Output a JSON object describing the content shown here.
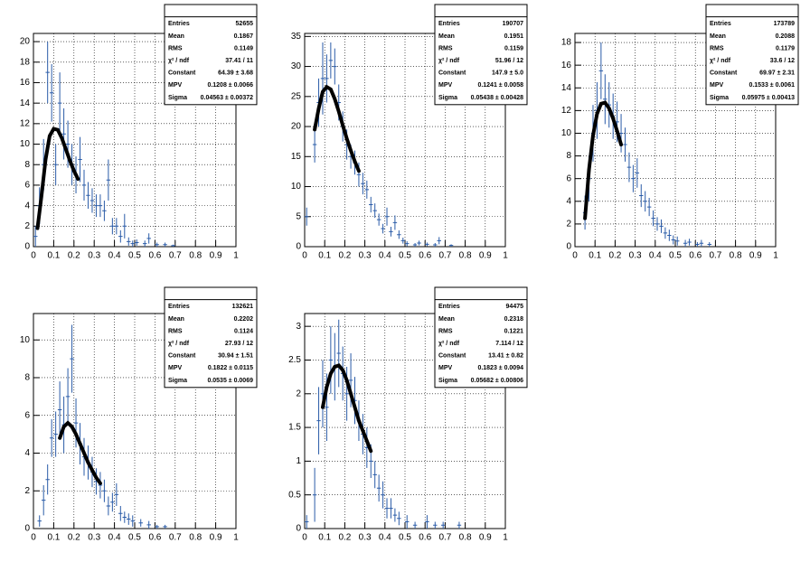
{
  "chart_data": [
    {
      "type": "errorbar",
      "grid": true,
      "xlim": [
        0,
        1
      ],
      "xticks": [
        0,
        0.1,
        0.2,
        0.3,
        0.4,
        0.5,
        0.6,
        0.7,
        0.8,
        0.9,
        1
      ],
      "ylim": [
        0,
        20.8
      ],
      "yticks": [
        0,
        2,
        4,
        6,
        8,
        10,
        12,
        14,
        16,
        18,
        20
      ],
      "series": [
        {
          "color": "#2b5ca8",
          "x": [
            0.01,
            0.03,
            0.05,
            0.07,
            0.09,
            0.11,
            0.13,
            0.15,
            0.17,
            0.19,
            0.21,
            0.23,
            0.25,
            0.27,
            0.29,
            0.31,
            0.33,
            0.35,
            0.37,
            0.39,
            0.41,
            0.43,
            0.45,
            0.47,
            0.49,
            0.51,
            0.55,
            0.57,
            0.61,
            0.65,
            0.69
          ],
          "values": [
            1,
            4,
            8,
            17,
            15,
            8,
            14,
            11,
            10,
            8,
            7,
            8.5,
            6,
            5,
            4.5,
            4,
            4,
            3.5,
            6.5,
            2,
            2,
            1,
            2,
            0.5,
            0.3,
            0.4,
            0.3,
            0.8,
            0.2,
            0.2,
            0.1
          ],
          "errors": [
            1,
            1.8,
            2.5,
            3,
            2.8,
            2,
            3,
            2.5,
            2.3,
            2,
            1.8,
            2.2,
            1.5,
            1.3,
            1.2,
            1.1,
            1.1,
            1,
            2,
            0.8,
            0.8,
            0.6,
            1.2,
            0.4,
            0.3,
            0.3,
            0.3,
            0.5,
            0.2,
            0.2,
            0.1
          ]
        }
      ],
      "fit": {
        "color": "#000000",
        "x": [
          0.02,
          0.04,
          0.06,
          0.08,
          0.1,
          0.12,
          0.14,
          0.16,
          0.18,
          0.2,
          0.22
        ],
        "values": [
          1.8,
          5,
          8.5,
          10.8,
          11.5,
          11.4,
          10.6,
          9.5,
          8.4,
          7.4,
          6.6
        ]
      },
      "stats": [
        {
          "label": "Entries",
          "value": "52655"
        },
        {
          "label": "Mean",
          "value": "0.1867"
        },
        {
          "label": "RMS",
          "value": "0.1149"
        },
        {
          "label": "χ² / ndf",
          "value": "37.41 / 11"
        },
        {
          "label": "Constant",
          "value": "64.39 ± 3.68"
        },
        {
          "label": "MPV",
          "value": "0.1208 ± 0.0066"
        },
        {
          "label": "Sigma",
          "value": "0.04563 ± 0.00372"
        }
      ]
    },
    {
      "type": "errorbar",
      "grid": true,
      "xlim": [
        0,
        1
      ],
      "xticks": [
        0,
        0.1,
        0.2,
        0.3,
        0.4,
        0.5,
        0.6,
        0.7,
        0.8,
        0.9,
        1
      ],
      "ylim": [
        0,
        35.5
      ],
      "yticks": [
        0,
        5,
        10,
        15,
        20,
        25,
        30,
        35
      ],
      "series": [
        {
          "color": "#2b5ca8",
          "x": [
            0.01,
            0.05,
            0.07,
            0.09,
            0.11,
            0.13,
            0.15,
            0.17,
            0.19,
            0.21,
            0.23,
            0.25,
            0.27,
            0.29,
            0.31,
            0.33,
            0.35,
            0.37,
            0.39,
            0.41,
            0.43,
            0.45,
            0.47,
            0.49,
            0.51,
            0.55,
            0.57,
            0.61,
            0.65,
            0.67,
            0.73
          ],
          "values": [
            5,
            17,
            24,
            28,
            28,
            31,
            30,
            24,
            20,
            17,
            15,
            14,
            12,
            10.5,
            9.5,
            7,
            6,
            4.5,
            3,
            5,
            2.5,
            4,
            2,
            1,
            0.5,
            0.3,
            0.6,
            0.4,
            0.3,
            1,
            0.2
          ],
          "errors": [
            1.5,
            3,
            4,
            6,
            4,
            3,
            3,
            3,
            2.5,
            2.5,
            2,
            2,
            2,
            1.8,
            1.5,
            1.3,
            1.2,
            1,
            0.8,
            1.5,
            0.8,
            1.2,
            0.7,
            0.5,
            0.4,
            0.3,
            0.4,
            0.3,
            0.3,
            0.6,
            0.2
          ]
        }
      ],
      "fit": {
        "color": "#000000",
        "x": [
          0.05,
          0.07,
          0.09,
          0.11,
          0.13,
          0.15,
          0.17,
          0.19,
          0.21,
          0.23,
          0.25,
          0.27
        ],
        "values": [
          19.5,
          23,
          25.8,
          26.6,
          26.2,
          24.6,
          22.5,
          20.2,
          18,
          16,
          14.2,
          12.6
        ]
      },
      "stats": [
        {
          "label": "Entries",
          "value": "190707"
        },
        {
          "label": "Mean",
          "value": "0.1951"
        },
        {
          "label": "RMS",
          "value": "0.1159"
        },
        {
          "label": "χ² / ndf",
          "value": "51.96 / 12"
        },
        {
          "label": "Constant",
          "value": "147.9 ± 5.0"
        },
        {
          "label": "MPV",
          "value": "0.1241 ± 0.0058"
        },
        {
          "label": "Sigma",
          "value": "0.05438 ± 0.00428"
        }
      ]
    },
    {
      "type": "errorbar",
      "grid": true,
      "xlim": [
        0,
        1
      ],
      "xticks": [
        0,
        0.1,
        0.2,
        0.3,
        0.4,
        0.5,
        0.6,
        0.7,
        0.8,
        0.9,
        1
      ],
      "ylim": [
        0,
        18.8
      ],
      "yticks": [
        0,
        2,
        4,
        6,
        8,
        10,
        12,
        14,
        16,
        18
      ],
      "series": [
        {
          "color": "#2b5ca8",
          "x": [
            0.05,
            0.07,
            0.09,
            0.11,
            0.13,
            0.15,
            0.17,
            0.19,
            0.21,
            0.23,
            0.25,
            0.27,
            0.29,
            0.31,
            0.33,
            0.35,
            0.37,
            0.39,
            0.41,
            0.43,
            0.45,
            0.47,
            0.49,
            0.51,
            0.55,
            0.57,
            0.61,
            0.63,
            0.67
          ],
          "values": [
            3,
            6,
            10,
            12,
            15.5,
            13,
            12.5,
            11.5,
            11,
            10,
            9,
            7,
            6,
            6.5,
            4.5,
            4,
            3.5,
            2.5,
            2,
            1.8,
            1.2,
            1,
            0.6,
            0.5,
            0.3,
            0.4,
            0.2,
            0.3,
            0.2
          ],
          "errors": [
            1.5,
            2,
            2.5,
            2.5,
            2.5,
            2.2,
            2,
            2,
            1.8,
            1.7,
            1.5,
            1.3,
            1.2,
            1.3,
            1,
            0.9,
            0.8,
            0.7,
            0.6,
            0.6,
            0.5,
            0.5,
            0.4,
            0.4,
            0.3,
            0.3,
            0.2,
            0.3,
            0.2
          ]
        }
      ],
      "fit": {
        "color": "#000000",
        "x": [
          0.05,
          0.07,
          0.09,
          0.11,
          0.13,
          0.15,
          0.17,
          0.19,
          0.21,
          0.23
        ],
        "values": [
          2.5,
          6.8,
          9.8,
          11.7,
          12.6,
          12.7,
          12.2,
          11.3,
          10.2,
          9
        ]
      },
      "stats": [
        {
          "label": "Entries",
          "value": "173789"
        },
        {
          "label": "Mean",
          "value": "0.2088"
        },
        {
          "label": "RMS",
          "value": "0.1179"
        },
        {
          "label": "χ² / ndf",
          "value": "33.6 / 12"
        },
        {
          "label": "Constant",
          "value": "69.97 ± 2.31"
        },
        {
          "label": "MPV",
          "value": "0.1533 ± 0.0061"
        },
        {
          "label": "Sigma",
          "value": "0.05975 ± 0.00413"
        }
      ]
    },
    {
      "type": "errorbar",
      "grid": true,
      "xlim": [
        0,
        1
      ],
      "xticks": [
        0,
        0.1,
        0.2,
        0.3,
        0.4,
        0.5,
        0.6,
        0.7,
        0.8,
        0.9,
        1
      ],
      "ylim": [
        0,
        11.4
      ],
      "yticks": [
        0,
        2,
        4,
        6,
        8,
        10
      ],
      "series": [
        {
          "color": "#2b5ca8",
          "x": [
            0.03,
            0.05,
            0.07,
            0.09,
            0.11,
            0.13,
            0.15,
            0.17,
            0.19,
            0.21,
            0.23,
            0.25,
            0.27,
            0.29,
            0.31,
            0.33,
            0.35,
            0.37,
            0.39,
            0.41,
            0.43,
            0.45,
            0.47,
            0.49,
            0.53,
            0.57,
            0.61,
            0.65
          ],
          "values": [
            0.4,
            1.5,
            2.6,
            4.8,
            5,
            6.3,
            5.5,
            7,
            9,
            5.6,
            4.5,
            3.8,
            3.5,
            3,
            2.5,
            2.3,
            2,
            1.2,
            1.4,
            1.8,
            0.8,
            0.6,
            0.5,
            0.4,
            0.3,
            0.2,
            0.1,
            0.1
          ],
          "errors": [
            0.3,
            0.8,
            0.8,
            1,
            1.2,
            1.5,
            1.5,
            1.5,
            1.8,
            1.3,
            1.1,
            1,
            0.9,
            0.8,
            0.7,
            0.7,
            0.6,
            0.5,
            0.5,
            0.6,
            0.4,
            0.3,
            0.3,
            0.3,
            0.2,
            0.2,
            0.1,
            0.1
          ]
        }
      ],
      "fit": {
        "color": "#000000",
        "x": [
          0.13,
          0.15,
          0.17,
          0.19,
          0.21,
          0.23,
          0.25,
          0.27,
          0.29,
          0.31,
          0.33
        ],
        "values": [
          4.8,
          5.4,
          5.6,
          5.4,
          5,
          4.5,
          4,
          3.5,
          3.1,
          2.7,
          2.4
        ]
      },
      "stats": [
        {
          "label": "Entries",
          "value": "132621"
        },
        {
          "label": "Mean",
          "value": "0.2202"
        },
        {
          "label": "RMS",
          "value": "0.1124"
        },
        {
          "label": "χ² / ndf",
          "value": "27.93 / 12"
        },
        {
          "label": "Constant",
          "value": "30.94 ± 1.51"
        },
        {
          "label": "MPV",
          "value": "0.1822 ± 0.0115"
        },
        {
          "label": "Sigma",
          "value": "0.0535 ± 0.0069"
        }
      ]
    },
    {
      "type": "errorbar",
      "grid": true,
      "xlim": [
        0,
        1
      ],
      "xticks": [
        0,
        0.1,
        0.2,
        0.3,
        0.4,
        0.5,
        0.6,
        0.7,
        0.8,
        0.9,
        1
      ],
      "ylim": [
        0,
        3.19
      ],
      "yticks": [
        0,
        0.5,
        1,
        1.5,
        2,
        2.5,
        3
      ],
      "series": [
        {
          "color": "#2b5ca8",
          "x": [
            0.01,
            0.05,
            0.07,
            0.09,
            0.11,
            0.13,
            0.15,
            0.17,
            0.19,
            0.21,
            0.23,
            0.25,
            0.27,
            0.29,
            0.31,
            0.33,
            0.35,
            0.37,
            0.39,
            0.41,
            0.43,
            0.45,
            0.47,
            0.51,
            0.55,
            0.61,
            0.65,
            0.69,
            0.77
          ],
          "values": [
            0.1,
            0.5,
            1.6,
            2,
            1.8,
            2.5,
            2.4,
            2.6,
            2.3,
            2,
            2.2,
            1.9,
            1.6,
            1.4,
            1.2,
            1,
            0.8,
            0.6,
            0.5,
            0.3,
            0.3,
            0.2,
            0.15,
            0.1,
            0.05,
            0.1,
            0.05,
            0.05,
            0.05
          ],
          "errors": [
            0.1,
            0.4,
            0.5,
            0.5,
            0.5,
            0.5,
            0.5,
            0.5,
            0.4,
            0.4,
            0.4,
            0.35,
            0.3,
            0.3,
            0.3,
            0.25,
            0.2,
            0.2,
            0.2,
            0.15,
            0.15,
            0.1,
            0.1,
            0.1,
            0.05,
            0.1,
            0.05,
            0.05,
            0.05
          ]
        }
      ],
      "fit": {
        "color": "#000000",
        "x": [
          0.09,
          0.11,
          0.13,
          0.15,
          0.17,
          0.19,
          0.21,
          0.23,
          0.25,
          0.27,
          0.29,
          0.31,
          0.33
        ],
        "values": [
          1.8,
          2.1,
          2.3,
          2.4,
          2.42,
          2.35,
          2.2,
          2,
          1.8,
          1.6,
          1.45,
          1.3,
          1.15
        ]
      },
      "stats": [
        {
          "label": "Entries",
          "value": "94475"
        },
        {
          "label": "Mean",
          "value": "0.2318"
        },
        {
          "label": "RMS",
          "value": "0.1221"
        },
        {
          "label": "χ² / ndf",
          "value": "7.114 / 12"
        },
        {
          "label": "Constant",
          "value": "13.41 ± 0.82"
        },
        {
          "label": "MPV",
          "value": "0.1823 ± 0.0094"
        },
        {
          "label": "Sigma",
          "value": "0.05682 ± 0.00806"
        }
      ]
    }
  ]
}
